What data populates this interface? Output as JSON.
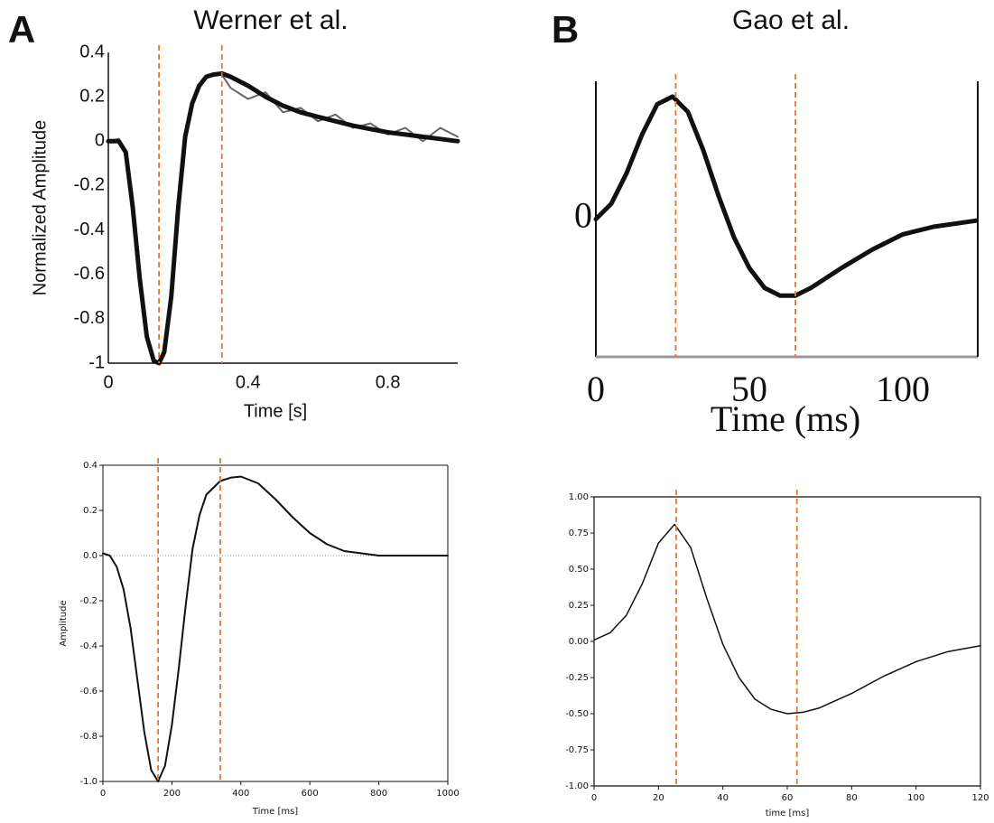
{
  "panels": [
    {
      "label": "A",
      "title": "Werner et al."
    },
    {
      "label": "B",
      "title": "Gao et al."
    }
  ],
  "chart_data": [
    {
      "type": "line",
      "ylabel": "Normalized Amplitude",
      "xlabel": "Time [s]",
      "x": [
        0,
        0.03,
        0.05,
        0.07,
        0.09,
        0.11,
        0.13,
        0.145,
        0.16,
        0.18,
        0.2,
        0.22,
        0.24,
        0.26,
        0.28,
        0.3,
        0.325,
        0.35,
        0.4,
        0.45,
        0.5,
        0.55,
        0.6,
        0.65,
        0.7,
        0.75,
        0.8,
        0.85,
        0.9,
        0.95,
        1.0
      ],
      "series": [
        {
          "color": "#666666",
          "values": [
            0,
            0.01,
            -0.04,
            -0.28,
            -0.6,
            -0.87,
            -0.98,
            -1,
            -0.95,
            -0.7,
            -0.3,
            0.02,
            0.17,
            0.25,
            0.29,
            0.3,
            0.3,
            0.24,
            0.19,
            0.22,
            0.13,
            0.15,
            0.09,
            0.12,
            0.06,
            0.08,
            0.03,
            0.06,
            0.0,
            0.06,
            0.02
          ]
        },
        {
          "color": "#111111",
          "values": [
            0,
            0,
            -0.05,
            -0.3,
            -0.62,
            -0.88,
            -0.99,
            -1,
            -0.95,
            -0.7,
            -0.3,
            0.02,
            0.17,
            0.25,
            0.29,
            0.3,
            0.305,
            0.29,
            0.25,
            0.2,
            0.16,
            0.13,
            0.11,
            0.09,
            0.07,
            0.055,
            0.04,
            0.03,
            0.02,
            0.01,
            0
          ]
        }
      ],
      "xlim": [
        0,
        1
      ],
      "xticks": [
        0,
        0.4,
        0.8
      ],
      "ylim": [
        -1,
        0.4
      ],
      "yticks": [
        -1,
        -0.8,
        -0.6,
        -0.4,
        -0.2,
        0,
        0.2,
        0.4
      ],
      "vlines": [
        0.145,
        0.325
      ],
      "vline_color": "#e8762c"
    },
    {
      "type": "line",
      "ylabel": "Amplitude",
      "xlabel": "Time [ms]",
      "x": [
        0,
        20,
        40,
        60,
        80,
        100,
        120,
        140,
        160,
        180,
        200,
        220,
        240,
        260,
        280,
        300,
        340,
        370,
        400,
        450,
        500,
        550,
        600,
        650,
        700,
        750,
        800,
        900,
        1000
      ],
      "series": [
        {
          "color": "#111111",
          "values": [
            0.01,
            0,
            -0.05,
            -0.15,
            -0.32,
            -0.55,
            -0.78,
            -0.95,
            -1,
            -0.93,
            -0.75,
            -0.5,
            -0.22,
            0.03,
            0.18,
            0.27,
            0.33,
            0.345,
            0.35,
            0.32,
            0.25,
            0.17,
            0.1,
            0.05,
            0.02,
            0.01,
            0,
            0,
            0
          ]
        }
      ],
      "xlim": [
        0,
        1000
      ],
      "xticks": [
        0,
        200,
        400,
        600,
        800,
        1000
      ],
      "ylim": [
        -1,
        0.4
      ],
      "yticks": [
        {
          "value": -1,
          "label": "-1.0"
        },
        {
          "value": -0.8,
          "label": "-0.8"
        },
        {
          "value": -0.6,
          "label": "-0.6"
        },
        {
          "value": -0.4,
          "label": "-0.4"
        },
        {
          "value": -0.2,
          "label": "-0.2"
        },
        {
          "value": 0,
          "label": "0.0"
        },
        0.2,
        0.4
      ],
      "hlines": [
        0
      ],
      "vlines": [
        160,
        340
      ],
      "vline_color": "#e8762c"
    },
    {
      "type": "line",
      "xlabel": "Time (ms)",
      "x": [
        0,
        5,
        10,
        15,
        20,
        25,
        30,
        35,
        40,
        45,
        50,
        55,
        60,
        65,
        70,
        80,
        90,
        100,
        110,
        124
      ],
      "series": [
        {
          "color": "#111111",
          "values": [
            0,
            0.1,
            0.3,
            0.55,
            0.75,
            0.8,
            0.7,
            0.45,
            0.15,
            -0.12,
            -0.32,
            -0.45,
            -0.5,
            -0.5,
            -0.45,
            -0.32,
            -0.2,
            -0.1,
            -0.05,
            -0.01
          ]
        }
      ],
      "xlim": [
        0,
        124.4
      ],
      "xticks": [
        0,
        50,
        100
      ],
      "ylim": [
        -0.9,
        0.9
      ],
      "yticks": [
        0
      ],
      "vlines": [
        26,
        65
      ],
      "vline_color": "#e8762c"
    },
    {
      "type": "line",
      "xlabel": "time [ms]",
      "x": [
        0,
        5,
        10,
        15,
        20,
        25,
        30,
        35,
        40,
        45,
        50,
        55,
        60,
        65,
        70,
        80,
        90,
        100,
        110,
        120
      ],
      "series": [
        {
          "color": "#111111",
          "values": [
            0.01,
            0.06,
            0.18,
            0.4,
            0.68,
            0.81,
            0.65,
            0.3,
            -0.02,
            -0.25,
            -0.4,
            -0.47,
            -0.5,
            -0.49,
            -0.46,
            -0.36,
            -0.24,
            -0.14,
            -0.07,
            -0.03
          ]
        }
      ],
      "xlim": [
        0,
        120
      ],
      "xticks": [
        0,
        20,
        40,
        60,
        80,
        100,
        120
      ],
      "ylim": [
        -1,
        1
      ],
      "yticks": [
        {
          "value": -1,
          "label": "-1.00"
        },
        {
          "value": -0.75,
          "label": "-0.75"
        },
        {
          "value": -0.5,
          "label": "-0.50"
        },
        {
          "value": -0.25,
          "label": "-0.25"
        },
        {
          "value": 0,
          "label": "0.00"
        },
        {
          "value": 0.25,
          "label": "0.25"
        },
        {
          "value": 0.5,
          "label": "0.50"
        },
        {
          "value": 0.75,
          "label": "0.75"
        },
        {
          "value": 1,
          "label": "1.00"
        }
      ],
      "vlines": [
        25.5,
        63
      ],
      "vline_color": "#e8762c"
    }
  ]
}
